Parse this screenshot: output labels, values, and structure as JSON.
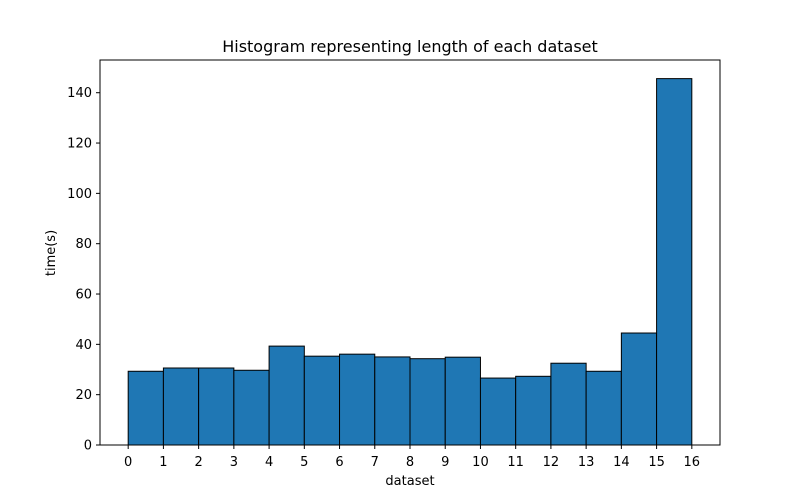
{
  "chart_data": {
    "type": "bar",
    "title": "Histogram representing length of each dataset",
    "xlabel": "dataset",
    "ylabel": "time(s)",
    "bin_edges": [
      0,
      1,
      2,
      3,
      4,
      5,
      6,
      7,
      8,
      9,
      10,
      11,
      12,
      13,
      14,
      15,
      16
    ],
    "values": [
      29.3,
      30.6,
      30.6,
      29.7,
      39.3,
      35.3,
      36.1,
      35.0,
      34.3,
      34.9,
      26.6,
      27.3,
      32.5,
      29.3,
      44.5,
      145.6
    ],
    "xlim": [
      -0.8,
      16.8
    ],
    "ylim": [
      0,
      153
    ],
    "xticks": [
      "0",
      "1",
      "2",
      "3",
      "4",
      "5",
      "6",
      "7",
      "8",
      "9",
      "10",
      "11",
      "12",
      "13",
      "14",
      "15",
      "16"
    ],
    "yticks": [
      "0",
      "20",
      "40",
      "60",
      "80",
      "100",
      "120",
      "140"
    ],
    "grid": false,
    "bar_color": "#1f77b4",
    "edge_color": "#000000"
  }
}
